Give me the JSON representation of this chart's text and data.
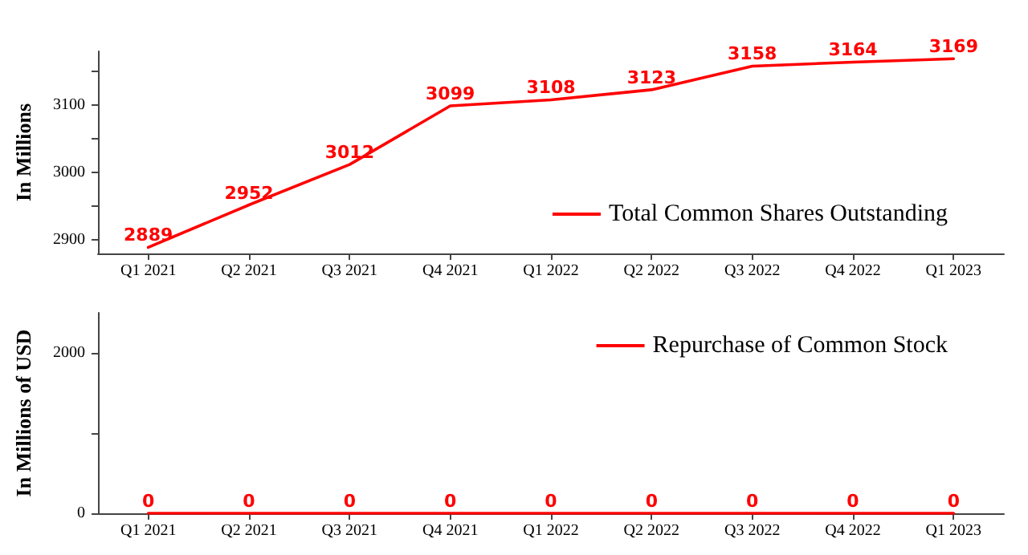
{
  "chart_data": [
    {
      "type": "line",
      "ylabel": "In Millions",
      "categories": [
        "Q1 2021",
        "Q2 2021",
        "Q3 2021",
        "Q4 2021",
        "Q1 2022",
        "Q2 2022",
        "Q3 2022",
        "Q4 2022",
        "Q1 2023"
      ],
      "series": [
        {
          "name": "Total Common Shares Outstanding",
          "color": "#ff0000",
          "values": [
            2889,
            2952,
            3012,
            3099,
            3108,
            3123,
            3158,
            3164,
            3169
          ]
        }
      ],
      "ylim": [
        2880,
        3180
      ],
      "yticks": [
        2900,
        {
          "value": 2950,
          "label": null
        },
        3000,
        {
          "value": 3050,
          "label": null
        },
        3100,
        {
          "value": 3150,
          "label": null
        }
      ],
      "data_labels": true,
      "legend": "bottom right",
      "grid": false,
      "marker": "none",
      "line_style": "solid"
    },
    {
      "type": "line",
      "ylabel": "In Millions of USD",
      "categories": [
        "Q1 2021",
        "Q2 2021",
        "Q3 2021",
        "Q4 2021",
        "Q1 2022",
        "Q2 2022",
        "Q3 2022",
        "Q4 2022",
        "Q1 2023"
      ],
      "series": [
        {
          "name": "Repurchase of Common Stock",
          "color": "#ff0000",
          "values": [
            0,
            0,
            0,
            0,
            0,
            0,
            0,
            0,
            0
          ]
        }
      ],
      "ylim": [
        0,
        2500
      ],
      "yticks": [
        0,
        {
          "value": 1000,
          "label": null
        },
        2000
      ],
      "data_labels": true,
      "legend": "top right",
      "grid": false,
      "marker": "none",
      "line_style": "solid"
    }
  ]
}
